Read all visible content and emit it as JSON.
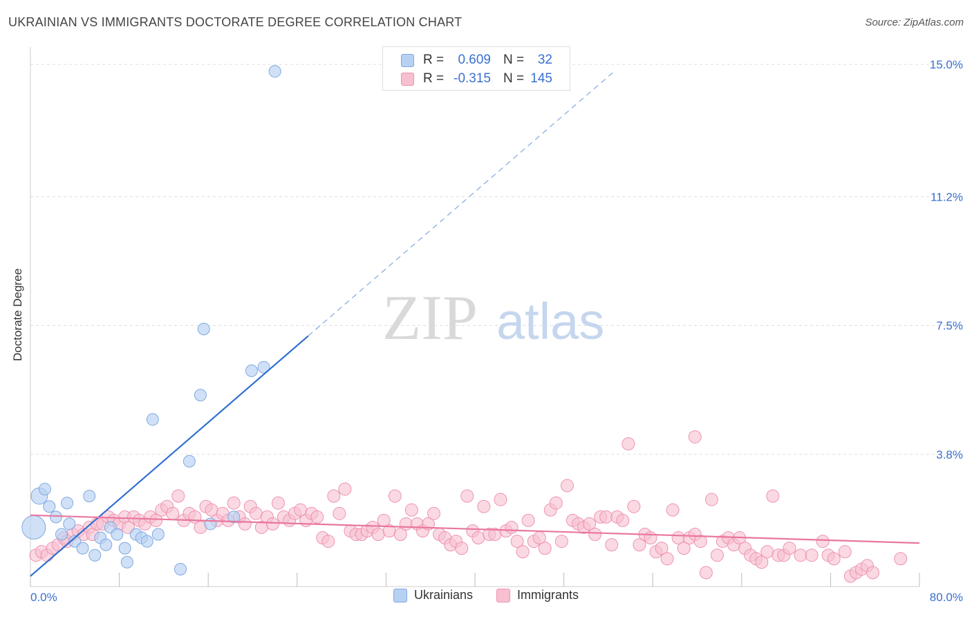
{
  "title": "UKRAINIAN VS IMMIGRANTS DOCTORATE DEGREE CORRELATION CHART",
  "source": "Source: ZipAtlas.com",
  "watermark": {
    "zip": "ZIP",
    "atlas": "atlas"
  },
  "colors": {
    "ukrainians_fill": "#b7d1f3",
    "ukrainians_stroke": "#7fa8e0",
    "ukrainians_line": "#2f6fd0",
    "immigrants_fill": "#f7bfd0",
    "immigrants_stroke": "#ee93b0",
    "immigrants_line": "#e8779e",
    "grid": "#dddddd",
    "axis_value": "#3a6fd0"
  },
  "stats": [
    {
      "series": "Ukrainians",
      "r_label": "R =",
      "r_value": "0.609",
      "n_label": "N =",
      "n_value": "32"
    },
    {
      "series": "Immigrants",
      "r_label": "R =",
      "r_value": "-0.315",
      "n_label": "N =",
      "n_value": "145"
    }
  ],
  "chart_data": {
    "type": "scatter",
    "title": "UKRAINIAN VS IMMIGRANTS DOCTORATE DEGREE CORRELATION CHART",
    "xlabel": "",
    "ylabel": "Doctorate Degree",
    "xlim": [
      0,
      80
    ],
    "ylim": [
      0,
      15.3
    ],
    "x_tick_labels": [
      "0.0%",
      "80.0%"
    ],
    "y_ticks": [
      {
        "value": 3.8,
        "label": "3.8%"
      },
      {
        "value": 7.5,
        "label": "7.5%"
      },
      {
        "value": 11.2,
        "label": "11.2%"
      },
      {
        "value": 15.0,
        "label": "15.0%"
      }
    ],
    "legend": [
      "Ukrainians",
      "Immigrants"
    ],
    "series": [
      {
        "name": "Ukrainians",
        "r": 0.609,
        "n": 32,
        "trend": {
          "x0": 0,
          "y0": 0.3,
          "x1": 25,
          "y1": 7.2,
          "dash_to_x": 52.5
        },
        "points": [
          [
            0.3,
            1.7,
            2.0
          ],
          [
            0.8,
            2.6,
            1.4
          ],
          [
            1.3,
            2.8,
            1.0
          ],
          [
            1.7,
            2.3,
            1.0
          ],
          [
            2.3,
            2.0,
            1.0
          ],
          [
            2.8,
            1.5,
            1.0
          ],
          [
            3.3,
            2.4,
            1.0
          ],
          [
            3.5,
            1.8,
            1.0
          ],
          [
            4.0,
            1.3,
            1.0
          ],
          [
            4.7,
            1.1,
            1.0
          ],
          [
            5.3,
            2.6,
            1.0
          ],
          [
            5.8,
            0.9,
            1.0
          ],
          [
            6.3,
            1.4,
            1.0
          ],
          [
            6.8,
            1.2,
            1.0
          ],
          [
            7.2,
            1.7,
            1.0
          ],
          [
            7.8,
            1.5,
            1.0
          ],
          [
            8.5,
            1.1,
            1.0
          ],
          [
            8.7,
            0.7,
            1.0
          ],
          [
            9.5,
            1.5,
            1.0
          ],
          [
            10.0,
            1.4,
            1.0
          ],
          [
            10.5,
            1.3,
            1.0
          ],
          [
            11.0,
            4.8,
            1.0
          ],
          [
            11.5,
            1.5,
            1.0
          ],
          [
            13.5,
            0.5,
            1.0
          ],
          [
            14.3,
            3.6,
            1.0
          ],
          [
            15.3,
            5.5,
            1.0
          ],
          [
            15.6,
            7.4,
            1.0
          ],
          [
            16.2,
            1.8,
            1.0
          ],
          [
            18.3,
            2.0,
            1.0
          ],
          [
            19.9,
            6.2,
            1.0
          ],
          [
            21.0,
            6.3,
            1.0
          ],
          [
            22.0,
            14.8,
            1.0
          ]
        ]
      },
      {
        "name": "Immigrants",
        "r": -0.315,
        "n": 145,
        "trend": {
          "x0": 0,
          "y0": 2.05,
          "x1": 80,
          "y1": 1.25
        },
        "points": [
          [
            0.5,
            0.9
          ],
          [
            1.0,
            1.0
          ],
          [
            1.5,
            0.9
          ],
          [
            2.0,
            1.1
          ],
          [
            2.5,
            1.2
          ],
          [
            3.0,
            1.4
          ],
          [
            3.3,
            1.3
          ],
          [
            3.8,
            1.5
          ],
          [
            4.3,
            1.6
          ],
          [
            4.8,
            1.5
          ],
          [
            5.3,
            1.7
          ],
          [
            5.6,
            1.5
          ],
          [
            6.0,
            1.8
          ],
          [
            6.5,
            1.8
          ],
          [
            7.0,
            2.0
          ],
          [
            7.5,
            1.9
          ],
          [
            8.0,
            1.8
          ],
          [
            8.5,
            2.0
          ],
          [
            8.8,
            1.7
          ],
          [
            9.3,
            2.0
          ],
          [
            9.8,
            1.9
          ],
          [
            10.3,
            1.8
          ],
          [
            10.8,
            2.0
          ],
          [
            11.3,
            1.9
          ],
          [
            11.8,
            2.2
          ],
          [
            12.3,
            2.3
          ],
          [
            12.8,
            2.1
          ],
          [
            13.3,
            2.6
          ],
          [
            13.8,
            1.9
          ],
          [
            14.3,
            2.1
          ],
          [
            14.8,
            2.0
          ],
          [
            15.3,
            1.7
          ],
          [
            15.8,
            2.3
          ],
          [
            16.3,
            2.2
          ],
          [
            16.8,
            1.9
          ],
          [
            17.3,
            2.1
          ],
          [
            17.8,
            1.9
          ],
          [
            18.3,
            2.4
          ],
          [
            18.8,
            2.0
          ],
          [
            19.3,
            1.8
          ],
          [
            19.8,
            2.3
          ],
          [
            20.3,
            2.1
          ],
          [
            20.8,
            1.7
          ],
          [
            21.3,
            2.0
          ],
          [
            21.8,
            1.8
          ],
          [
            22.3,
            2.4
          ],
          [
            22.8,
            2.0
          ],
          [
            23.3,
            1.9
          ],
          [
            23.8,
            2.1
          ],
          [
            24.3,
            2.2
          ],
          [
            24.8,
            1.9
          ],
          [
            25.3,
            2.1
          ],
          [
            25.8,
            2.0
          ],
          [
            26.3,
            1.4
          ],
          [
            26.8,
            1.3
          ],
          [
            27.3,
            2.6
          ],
          [
            27.8,
            2.1
          ],
          [
            28.3,
            2.8
          ],
          [
            28.8,
            1.6
          ],
          [
            29.3,
            1.5
          ],
          [
            29.8,
            1.5
          ],
          [
            30.3,
            1.6
          ],
          [
            30.8,
            1.7
          ],
          [
            31.3,
            1.5
          ],
          [
            31.8,
            1.9
          ],
          [
            32.3,
            1.6
          ],
          [
            32.8,
            2.6
          ],
          [
            33.3,
            1.5
          ],
          [
            33.8,
            1.8
          ],
          [
            34.3,
            2.2
          ],
          [
            34.8,
            1.8
          ],
          [
            35.3,
            1.6
          ],
          [
            35.8,
            1.8
          ],
          [
            36.3,
            2.1
          ],
          [
            36.8,
            1.5
          ],
          [
            37.3,
            1.4
          ],
          [
            37.8,
            1.2
          ],
          [
            38.3,
            1.3
          ],
          [
            38.8,
            1.1
          ],
          [
            39.3,
            2.6
          ],
          [
            39.8,
            1.6
          ],
          [
            40.3,
            1.4
          ],
          [
            40.8,
            2.3
          ],
          [
            41.3,
            1.5
          ],
          [
            41.8,
            1.5
          ],
          [
            42.3,
            2.5
          ],
          [
            42.8,
            1.6
          ],
          [
            43.3,
            1.7
          ],
          [
            43.8,
            1.3
          ],
          [
            44.3,
            1.0
          ],
          [
            44.8,
            1.9
          ],
          [
            45.3,
            1.3
          ],
          [
            45.8,
            1.4
          ],
          [
            46.3,
            1.1
          ],
          [
            46.8,
            2.2
          ],
          [
            47.3,
            2.4
          ],
          [
            47.8,
            1.3
          ],
          [
            48.3,
            2.9
          ],
          [
            48.8,
            1.9
          ],
          [
            49.3,
            1.8
          ],
          [
            49.8,
            1.7
          ],
          [
            50.3,
            1.8
          ],
          [
            50.8,
            1.5
          ],
          [
            51.3,
            2.0
          ],
          [
            51.8,
            2.0
          ],
          [
            52.3,
            1.2
          ],
          [
            52.8,
            2.0
          ],
          [
            53.3,
            1.9
          ],
          [
            53.8,
            4.1
          ],
          [
            54.3,
            2.3
          ],
          [
            54.8,
            1.2
          ],
          [
            55.3,
            1.5
          ],
          [
            55.8,
            1.4
          ],
          [
            56.3,
            1.0
          ],
          [
            56.8,
            1.1
          ],
          [
            57.3,
            0.8
          ],
          [
            57.8,
            2.2
          ],
          [
            58.3,
            1.4
          ],
          [
            58.8,
            1.1
          ],
          [
            59.3,
            1.4
          ],
          [
            59.8,
            1.5
          ],
          [
            60.3,
            1.3
          ],
          [
            60.8,
            0.4
          ],
          [
            61.3,
            2.5
          ],
          [
            61.8,
            0.9
          ],
          [
            62.3,
            1.3
          ],
          [
            62.8,
            1.4
          ],
          [
            63.3,
            1.2
          ],
          [
            63.8,
            1.4
          ],
          [
            64.3,
            1.1
          ],
          [
            64.8,
            0.9
          ],
          [
            65.3,
            0.8
          ],
          [
            65.8,
            0.7
          ],
          [
            66.3,
            1.0
          ],
          [
            66.8,
            2.6
          ],
          [
            67.3,
            0.9
          ],
          [
            67.8,
            0.9
          ],
          [
            68.3,
            1.1
          ],
          [
            69.3,
            0.9
          ],
          [
            70.3,
            0.9
          ],
          [
            71.3,
            1.3
          ],
          [
            71.8,
            0.9
          ],
          [
            72.3,
            0.8
          ],
          [
            73.3,
            1.0
          ],
          [
            73.8,
            0.3
          ],
          [
            74.3,
            0.4
          ],
          [
            74.8,
            0.5
          ],
          [
            75.3,
            0.6
          ],
          [
            75.8,
            0.4
          ],
          [
            78.3,
            0.8
          ],
          [
            59.8,
            4.3
          ]
        ]
      }
    ]
  }
}
